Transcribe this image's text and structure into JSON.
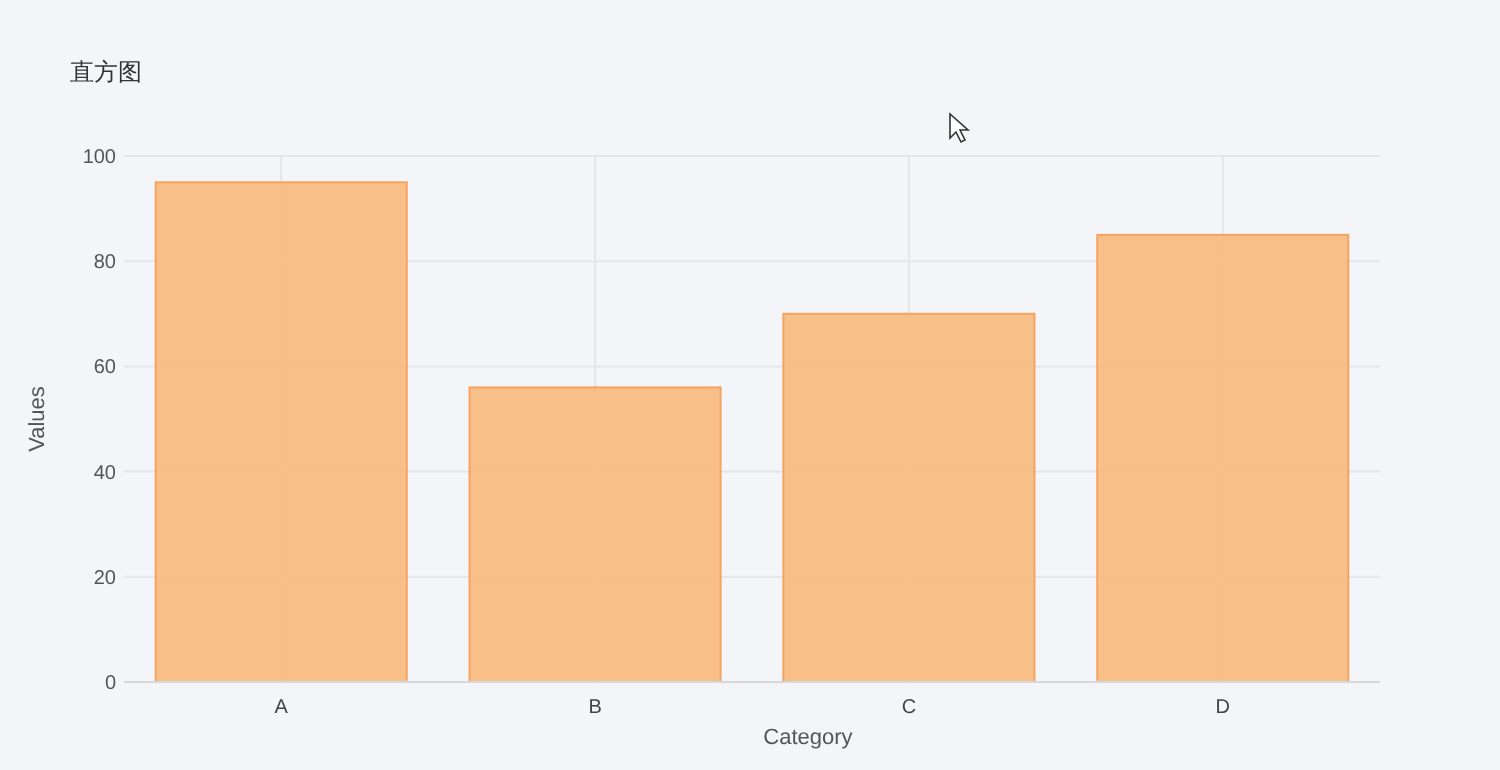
{
  "chart_data": {
    "type": "bar",
    "title": "直方图",
    "xlabel": "Category",
    "ylabel": "Values",
    "categories": [
      "A",
      "B",
      "C",
      "D"
    ],
    "values": [
      95,
      56,
      70,
      85
    ],
    "color": "#f9bc82",
    "ylim": [
      0,
      100
    ],
    "yticks": [
      0,
      20,
      40,
      60,
      80,
      100
    ],
    "grid": true
  }
}
